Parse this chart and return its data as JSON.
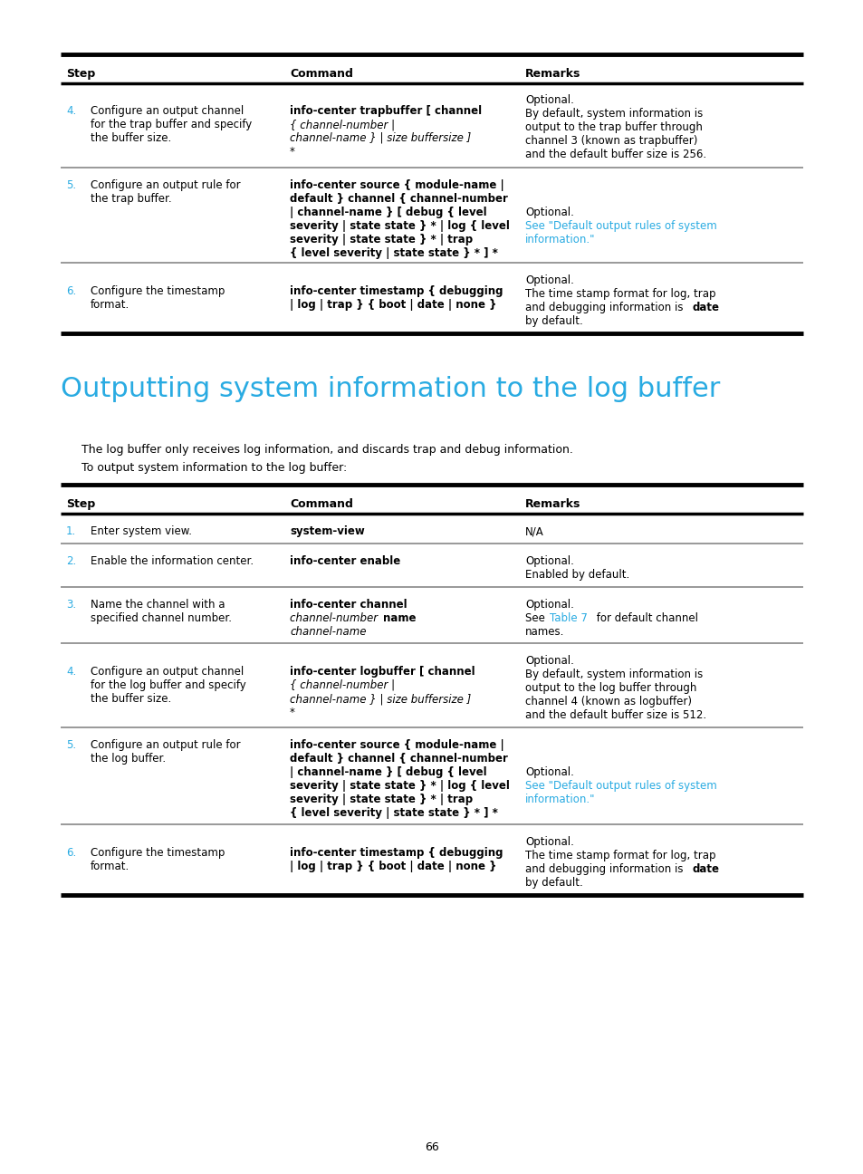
{
  "bg_color": "#ffffff",
  "text_color": "#000000",
  "cyan_color": "#29abe2",
  "page_number": "66",
  "section_title": "Outputting system information to the log buffer",
  "section_intro1": "The log buffer only receives log information, and discards trap and debug information.",
  "section_intro2": "To output system information to the log buffer:"
}
